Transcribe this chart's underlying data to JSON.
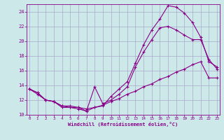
{
  "xlabel": "Windchill (Refroidissement éolien,°C)",
  "bg_color": "#cde8e8",
  "grid_color": "#aaaacc",
  "line_color": "#880088",
  "x_min": 0,
  "x_max": 23,
  "y_min": 10,
  "y_max": 25,
  "line1_x": [
    0,
    1,
    2,
    3,
    4,
    5,
    6,
    7,
    8,
    9,
    10,
    11,
    12,
    13,
    14,
    15,
    16,
    17,
    18,
    19,
    20,
    21,
    22,
    23
  ],
  "line1_y": [
    13.5,
    13.0,
    12.0,
    11.8,
    11.0,
    11.0,
    10.8,
    10.5,
    11.0,
    11.2,
    12.5,
    13.5,
    14.5,
    17.0,
    19.5,
    21.5,
    23.0,
    24.8,
    24.6,
    23.8,
    22.5,
    20.5,
    17.2,
    16.5
  ],
  "line2_x": [
    0,
    1,
    2,
    3,
    4,
    5,
    6,
    7,
    8,
    9,
    10,
    11,
    12,
    13,
    14,
    15,
    16,
    17,
    18,
    19,
    20,
    21,
    22,
    23
  ],
  "line2_y": [
    13.5,
    13.0,
    12.0,
    11.8,
    11.2,
    11.0,
    11.0,
    10.5,
    13.8,
    11.5,
    12.0,
    12.8,
    13.8,
    16.5,
    18.5,
    20.2,
    21.8,
    22.0,
    21.5,
    20.8,
    20.2,
    20.2,
    17.5,
    16.2
  ],
  "line3_x": [
    0,
    1,
    2,
    3,
    4,
    5,
    6,
    7,
    8,
    9,
    10,
    11,
    12,
    13,
    14,
    15,
    16,
    17,
    18,
    19,
    20,
    21,
    22,
    23
  ],
  "line3_y": [
    13.5,
    12.8,
    12.0,
    11.8,
    11.2,
    11.2,
    11.0,
    10.8,
    11.0,
    11.3,
    11.8,
    12.2,
    12.8,
    13.2,
    13.8,
    14.2,
    14.8,
    15.2,
    15.8,
    16.2,
    16.8,
    17.2,
    15.0,
    15.0
  ]
}
